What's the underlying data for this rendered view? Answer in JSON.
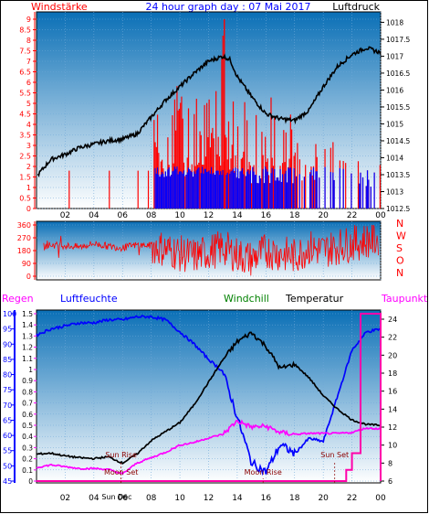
{
  "header": {
    "left_label": "Windstärke",
    "title": "24 hour graph day : 07 Mai 2017",
    "right_label": "Luftdruck"
  },
  "panel2": {
    "compass_labels": [
      "N",
      "W",
      "S",
      "O",
      "N"
    ]
  },
  "panel3": {
    "labels": {
      "regen": "Regen",
      "luftfeuchte": "Luftfeuchte",
      "windchill": "Windchill",
      "temperatur": "Temperatur",
      "taupunkt": "Taupunkt"
    },
    "events": {
      "sun_rise": "Sun Rise",
      "sun_set": "Sun Set",
      "moon_set": "Moon Set",
      "moon_rise": "Moon Rise",
      "sun_dec": "Sun Dec"
    }
  },
  "colors": {
    "background_top": "#0a6fb6",
    "background_bottom": "#ffffff",
    "pressure": "#000000",
    "wind_red": "#ff0000",
    "wind_blue": "#0000ff",
    "temperature": "#000000",
    "humidity": "#0000ff",
    "dewpoint": "#ff00ff",
    "rain": "#ff00aa",
    "header_text": "#0000ff",
    "left_axis": "#ff0000"
  },
  "chart_data": [
    {
      "type": "line",
      "title": "24 hour graph day : 07 Mai 2017",
      "x_ticks": [
        "02",
        "04",
        "06",
        "08",
        "10",
        "12",
        "14",
        "16",
        "18",
        "20",
        "22",
        "00"
      ],
      "wind_axis": {
        "label": "Windstärke",
        "ticks": [
          "0",
          "0.5",
          "1",
          "1.5",
          "2",
          "2.5",
          "3",
          "3.5",
          "4",
          "4.5",
          "5",
          "5.5",
          "6",
          "6.5",
          "7",
          "7.5",
          "8",
          "8.5",
          "9"
        ],
        "ylim": [
          0,
          9
        ]
      },
      "pressure_axis": {
        "label": "Luftdruck",
        "ticks": [
          "1012.5",
          "1013",
          "1013.5",
          "1014",
          "1014.5",
          "1015",
          "1015.5",
          "1016",
          "1016.5",
          "1017",
          "1017.5",
          "1018"
        ],
        "ylim": [
          1012.5,
          1018.2
        ]
      },
      "series": [
        {
          "name": "Luftdruck",
          "x": [
            0.1,
            1,
            2,
            3,
            4,
            5,
            6,
            7,
            8,
            9,
            10,
            11,
            12,
            13,
            13.5,
            14,
            15,
            16,
            17,
            18,
            19,
            20,
            21,
            22,
            23,
            24
          ],
          "values": [
            1013.5,
            1013.95,
            1014.1,
            1014.3,
            1014.4,
            1014.5,
            1014.55,
            1014.7,
            1015.2,
            1015.7,
            1016.1,
            1016.5,
            1016.85,
            1017.0,
            1016.9,
            1016.4,
            1015.8,
            1015.3,
            1015.15,
            1015.1,
            1015.4,
            1016.1,
            1016.7,
            1017.05,
            1017.25,
            1017.1
          ]
        }
      ]
    },
    {
      "type": "scatter",
      "y_ticks": [
        "0",
        "90",
        "180",
        "270",
        "360"
      ],
      "ylim": [
        0,
        360
      ],
      "series": [
        {
          "name": "Windrichtung",
          "x": [
            0.5,
            1,
            2,
            3,
            4,
            5,
            6,
            7,
            8,
            9,
            10,
            11,
            12,
            13,
            14,
            15,
            16,
            17,
            18,
            19,
            20,
            21,
            22,
            23,
            23.8
          ],
          "values": [
            210,
            220,
            215,
            205,
            230,
            210,
            200,
            220,
            215,
            190,
            160,
            140,
            170,
            200,
            150,
            120,
            180,
            160,
            140,
            200,
            180,
            210,
            230,
            250,
            260
          ]
        }
      ]
    },
    {
      "type": "line",
      "regen_axis": {
        "label": "Regen",
        "ticks": [
          "0",
          "0.1",
          "0.2",
          "0.3",
          "0.4",
          "0.5",
          "0.6",
          "0.7",
          "0.8",
          "0.9",
          "1",
          "1.1",
          "1.2",
          "1.3",
          "1.4",
          "1.5"
        ],
        "ylim": [
          0,
          1.5
        ]
      },
      "humidity_axis": {
        "label": "Luftfeuchte",
        "ticks": [
          "45",
          "50",
          "55",
          "60",
          "65",
          "70",
          "75",
          "80",
          "85",
          "90",
          "95",
          "100"
        ],
        "ylim": [
          45,
          100
        ]
      },
      "temperature_axis": {
        "label": "Temperatur",
        "ticks": [
          "6",
          "8",
          "10",
          "12",
          "14",
          "16",
          "18",
          "20",
          "22",
          "24"
        ],
        "ylim": [
          6,
          24
        ]
      },
      "series": [
        {
          "name": "Luftfeuchte",
          "axis": "humidity",
          "x": [
            0,
            1,
            2,
            3,
            4,
            5,
            6,
            7,
            8,
            9,
            10,
            11,
            12,
            13,
            14,
            15,
            16,
            17,
            18,
            19,
            20,
            21,
            22,
            23,
            24
          ],
          "values": [
            93,
            95,
            96,
            97,
            97,
            98,
            98,
            99,
            99,
            98,
            94,
            90,
            85,
            81,
            66,
            51,
            48,
            57,
            54,
            59,
            58,
            73,
            88,
            94,
            95
          ]
        },
        {
          "name": "Temperatur",
          "axis": "temperature",
          "x": [
            0,
            1,
            2,
            3,
            4,
            5,
            6,
            7,
            8,
            9,
            10,
            11,
            12,
            13,
            14,
            15,
            16,
            17,
            18,
            19,
            20,
            21,
            22,
            23,
            24
          ],
          "values": [
            9,
            9.1,
            8.8,
            8.6,
            8.5,
            8.7,
            8,
            9,
            10.5,
            11.5,
            12.5,
            14.5,
            17,
            19.5,
            21.5,
            22.5,
            21,
            18.5,
            19,
            17.5,
            15.5,
            14,
            12.8,
            12.3,
            12.2
          ]
        },
        {
          "name": "Taupunkt",
          "axis": "temperature",
          "x": [
            0,
            1,
            2,
            3,
            4,
            5,
            6,
            7,
            8,
            9,
            10,
            11,
            12,
            13,
            14,
            15,
            16,
            17,
            18,
            19,
            20,
            21,
            22,
            23,
            24
          ],
          "values": [
            7.5,
            7.8,
            7.6,
            7.4,
            7.4,
            7.3,
            6.8,
            8,
            8.6,
            9.2,
            10,
            10.3,
            10.8,
            11.2,
            12.7,
            12,
            12.1,
            11.4,
            11.2,
            11.3,
            11.3,
            11.3,
            11.4,
            11.9,
            11.8
          ]
        },
        {
          "name": "Regen",
          "axis": "regen",
          "x": [
            0,
            21.3,
            21.6,
            22,
            22.6,
            23,
            24
          ],
          "values": [
            0,
            0,
            0.1,
            0.25,
            1.5,
            1.5,
            1.5
          ]
        }
      ]
    }
  ]
}
